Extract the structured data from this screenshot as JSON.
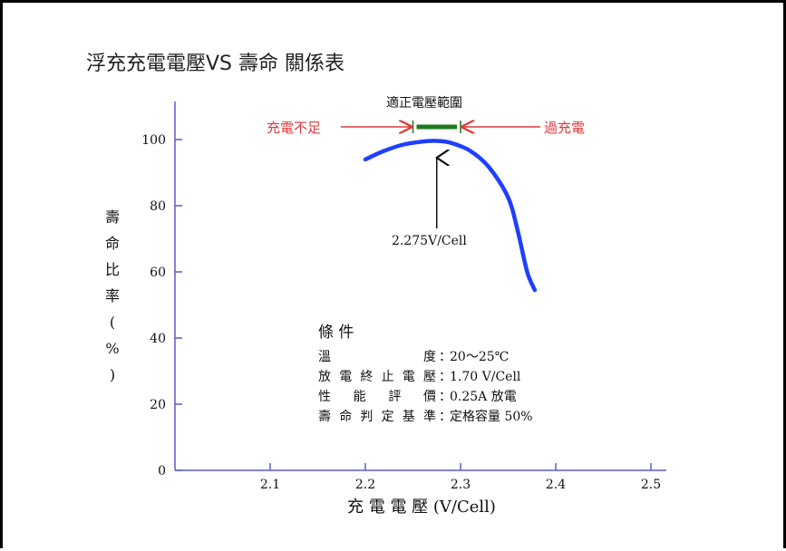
{
  "chart_data": {
    "type": "line",
    "title": "浮充充電電壓VS 壽命 關係表",
    "xlabel": "充 電 電 壓 (V/Cell)",
    "ylabel": "壽命比率(%)",
    "ylabel_chars": [
      "壽",
      "命",
      "比",
      "率",
      "(",
      "%",
      ")"
    ],
    "xlim": [
      2.0,
      2.5
    ],
    "ylim": [
      0,
      100
    ],
    "x_ticks": [
      "2.1",
      "2.2",
      "2.3",
      "2.4",
      "2.5"
    ],
    "y_ticks": [
      "0",
      "20",
      "40",
      "60",
      "80",
      "100"
    ],
    "colors": {
      "curve": "#1f3fff",
      "axis": "#5a5acd",
      "range_bar": "#1e7a1e",
      "arrows": "#e0383a"
    },
    "series": [
      {
        "x": [
          2.2,
          2.22,
          2.24,
          2.26,
          2.275,
          2.29,
          2.31,
          2.33,
          2.35,
          2.36,
          2.37,
          2.378
        ],
        "y": [
          94,
          96.6,
          98.5,
          99.4,
          99.6,
          99.0,
          96.6,
          91.6,
          82.5,
          72.5,
          60.0,
          54.5
        ]
      }
    ],
    "annotations": {
      "optimal_range_label": "適正電壓範圍",
      "under_charge_label": "充電不足",
      "over_charge_label": "過充電",
      "optimal_point_label": "2.275V/Cell",
      "optimal_range": [
        2.25,
        2.3
      ],
      "optimal_point": 2.275
    },
    "conditions": {
      "title": "條 件",
      "rows": [
        {
          "label": "溫　　　　度",
          "value": "20～25℃"
        },
        {
          "label": "放電終止電壓",
          "value": "1.70 V/Cell"
        },
        {
          "label": "性 能 評 價",
          "value": "0.25A 放電"
        },
        {
          "label": "壽命判定基準",
          "value": "定格容量 50%"
        }
      ]
    }
  }
}
